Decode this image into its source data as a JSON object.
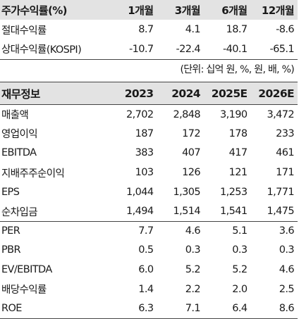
{
  "returns_table": {
    "header": {
      "label": "주가수익률(%)",
      "periods": [
        "1개월",
        "3개월",
        "6개월",
        "12개월"
      ]
    },
    "rows": [
      {
        "label": "절대수익률",
        "values": [
          "8.7",
          "4.1",
          "18.7",
          "-8.6"
        ]
      },
      {
        "label": "상대수익률(KOSPI)",
        "values": [
          "-10.7",
          "-22.4",
          "-40.1",
          "-65.1"
        ]
      }
    ]
  },
  "unit_note": "(단위: 십억 원, %, 원, 배, %)",
  "financials_table": {
    "header": {
      "label": "재무정보",
      "years": [
        "2023",
        "2024",
        "2025E",
        "2026E"
      ]
    },
    "rows": [
      {
        "label": "매출액",
        "values": [
          "2,702",
          "2,848",
          "3,190",
          "3,472"
        ]
      },
      {
        "label": "영업이익",
        "values": [
          "187",
          "172",
          "178",
          "233"
        ]
      },
      {
        "label": "EBITDA",
        "values": [
          "383",
          "407",
          "417",
          "461"
        ]
      },
      {
        "label": "지배주주순이익",
        "values": [
          "103",
          "126",
          "121",
          "171"
        ]
      },
      {
        "label": "EPS",
        "values": [
          "1,044",
          "1,305",
          "1,253",
          "1,771"
        ]
      },
      {
        "label": "순차입금",
        "values": [
          "1,494",
          "1,514",
          "1,541",
          "1,475"
        ]
      },
      {
        "label": "PER",
        "values": [
          "7.7",
          "4.6",
          "5.1",
          "3.6"
        ]
      },
      {
        "label": "PBR",
        "values": [
          "0.5",
          "0.3",
          "0.3",
          "0.3"
        ]
      },
      {
        "label": "EV/EBITDA",
        "values": [
          "6.0",
          "5.2",
          "5.2",
          "4.6"
        ]
      },
      {
        "label": "배당수익률",
        "values": [
          "1.4",
          "2.2",
          "2.0",
          "2.5"
        ]
      },
      {
        "label": "ROE",
        "values": [
          "6.3",
          "7.1",
          "6.4",
          "8.6"
        ]
      }
    ]
  }
}
